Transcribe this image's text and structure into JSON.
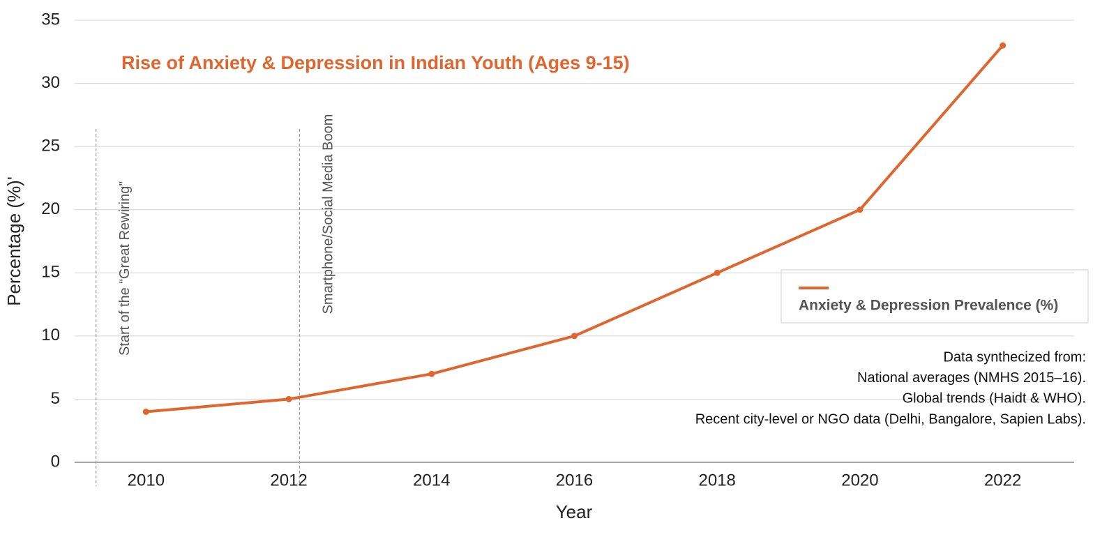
{
  "chart_data": {
    "type": "line",
    "title": "Rise of Anxiety & Depression in Indian Youth (Ages 9-15)",
    "x_label": "Year",
    "y_label": "Percentage (%)'",
    "x": [
      2010,
      2012,
      2014,
      2016,
      2018,
      2020,
      2022
    ],
    "series": [
      {
        "name": "Anxiety & Depression Prevalence (%)",
        "color": "#e0662f",
        "values": [
          4,
          5,
          7,
          10,
          15,
          20,
          33
        ]
      }
    ],
    "xlim": [
      2009,
      2023
    ],
    "xticks": [
      2010,
      2012,
      2014,
      2016,
      2018,
      2020,
      2022
    ],
    "ylim": [
      0,
      35
    ],
    "yticks": [
      0,
      5,
      10,
      15,
      20,
      25,
      30,
      35
    ],
    "grid": true,
    "legend": "right",
    "annotations": [
      {
        "x": 2009.3,
        "text": "Start of the “Great Rewiring”"
      },
      {
        "x": 2012.15,
        "text": "Smartphone/Social Media Boom"
      }
    ],
    "notes": [
      "Data synthecized from:",
      "National averages (NMHS 2015–16).",
      "Global trends (Haidt & WHO).",
      "Recent city-level or NGO data (Delhi, Bangalore, Sapien Labs)."
    ]
  }
}
